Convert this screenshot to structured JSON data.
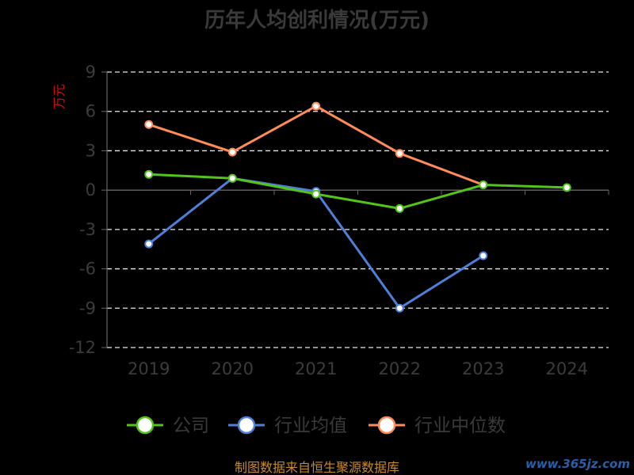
{
  "chart_data": {
    "type": "line",
    "title": "历年人均创利情况(万元)",
    "ylabel": "万元",
    "xlabel": "",
    "categories": [
      "2019",
      "2020",
      "2021",
      "2022",
      "2023",
      "2024"
    ],
    "y_ticks": [
      "9",
      "6",
      "3",
      "0",
      "-3",
      "-6",
      "-9",
      "-12"
    ],
    "ylim": [
      -12,
      9
    ],
    "grid": true,
    "legend_position": "bottom",
    "series": [
      {
        "name": "公司",
        "color": "#52c41a",
        "values": [
          1.2,
          0.9,
          -0.3,
          -1.4,
          0.4,
          0.2
        ]
      },
      {
        "name": "行业均值",
        "color": "#4e7fd9",
        "values": [
          -4.1,
          0.9,
          -0.1,
          -9.0,
          -5.0,
          null
        ]
      },
      {
        "name": "行业中位数",
        "color": "#ff8c5a",
        "values": [
          5.0,
          2.9,
          6.4,
          2.8,
          0.4,
          null
        ]
      }
    ]
  },
  "source_text": "制图数据来自恒生聚源数据库",
  "watermark_text": "www.365jz.com"
}
